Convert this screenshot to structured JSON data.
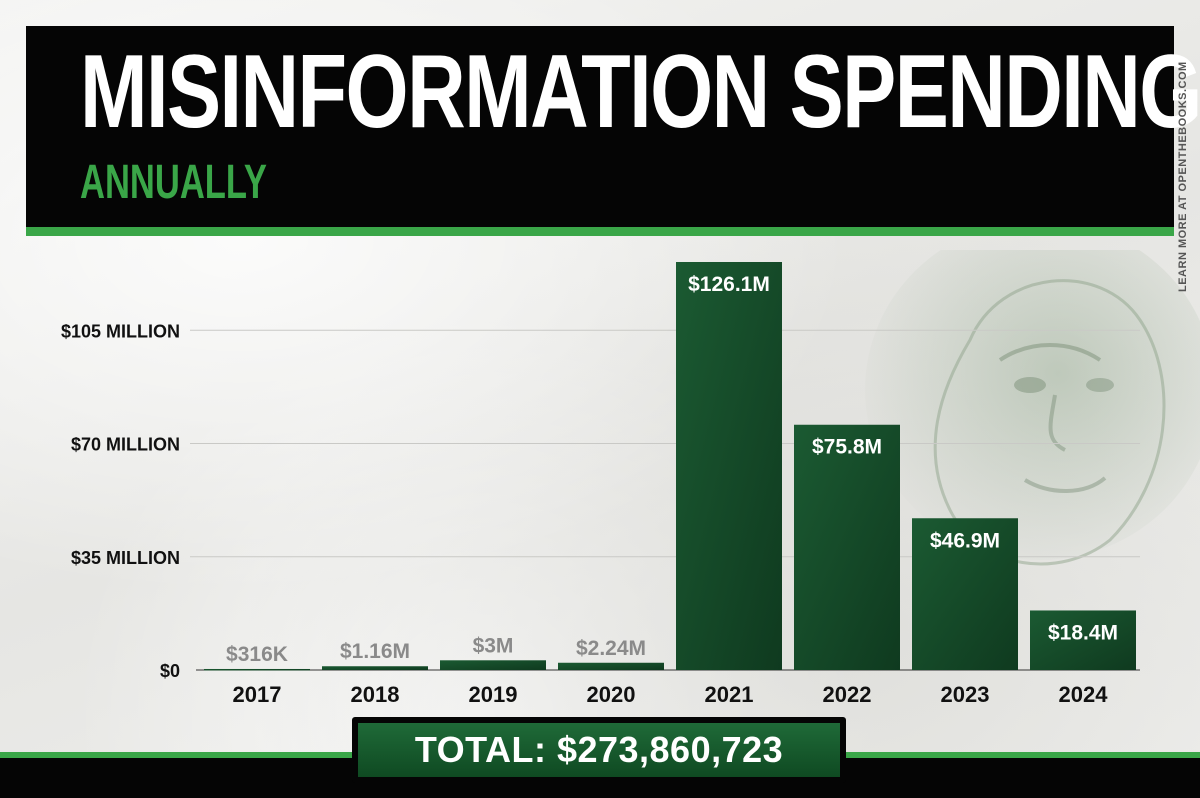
{
  "header": {
    "title": "MISINFORMATION SPENDING",
    "subtitle": "ANNUALLY",
    "credit": "LEARN MORE AT OPENTHEBOOKS.COM"
  },
  "total": {
    "label": "TOTAL: $273,860,723"
  },
  "colors": {
    "bar_dark": "#0f3a1f",
    "bar_light": "#1b5a32",
    "accent_green": "#3aa648",
    "label_gray": "#8a8a8a",
    "black": "#050505"
  },
  "chart_data": {
    "type": "bar",
    "title": "MISINFORMATION SPENDING",
    "subtitle": "ANNUALLY",
    "categories": [
      "2017",
      "2018",
      "2019",
      "2020",
      "2021",
      "2022",
      "2023",
      "2024"
    ],
    "values": [
      0.316,
      1.16,
      3,
      2.24,
      126.1,
      75.8,
      46.9,
      18.4
    ],
    "value_labels": [
      "$316K",
      "$1.16M",
      "$3M",
      "$2.24M",
      "$126.1M",
      "$75.8M",
      "$46.9M",
      "$18.4M"
    ],
    "unit": "millions of dollars",
    "yticks": [
      {
        "value": 0,
        "label": "$0"
      },
      {
        "value": 35,
        "label": "$35 MILLION"
      },
      {
        "value": 70,
        "label": "$70 MILLION"
      },
      {
        "value": 105,
        "label": "$105 MILLION"
      }
    ],
    "ylim": [
      0,
      126.1
    ],
    "xlabel": "",
    "ylabel": "",
    "grid": true,
    "legend": "none"
  }
}
